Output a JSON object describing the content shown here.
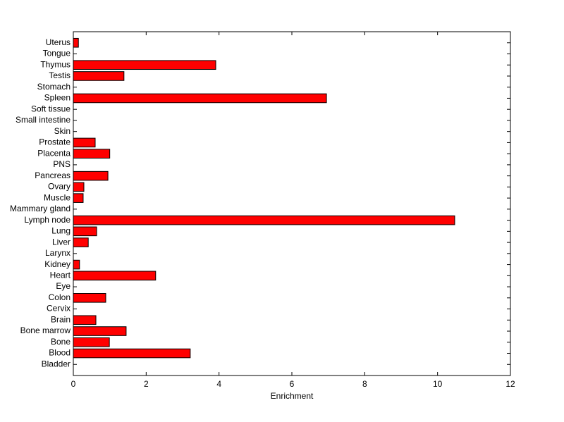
{
  "chart_data": {
    "type": "barh",
    "x_label": "Enrichment",
    "categories": [
      "Bladder",
      "Blood",
      "Bone",
      "Bone marrow",
      "Brain",
      "Cervix",
      "Colon",
      "Eye",
      "Heart",
      "Kidney",
      "Larynx",
      "Liver",
      "Lung",
      "Lymph node",
      "Mammary gland",
      "Muscle",
      "Ovary",
      "Pancreas",
      "PNS",
      "Placenta",
      "Prostate",
      "Skin",
      "Small intestine",
      "Soft tissue",
      "Spleen",
      "Stomach",
      "Testis",
      "Thymus",
      "Tongue",
      "Uterus"
    ],
    "values": [
      0,
      3.21,
      0.99,
      1.45,
      0.62,
      0,
      0.89,
      0,
      2.26,
      0.17,
      0,
      0.41,
      0.64,
      10.47,
      0,
      0.27,
      0.29,
      0.95,
      0,
      1.0,
      0.6,
      0,
      0,
      0,
      6.95,
      0,
      1.39,
      3.91,
      0,
      0.14
    ],
    "color": "#ff0000",
    "xlim": [
      0,
      12
    ],
    "xticks": [
      0,
      2,
      4,
      6,
      8,
      10,
      12
    ]
  }
}
